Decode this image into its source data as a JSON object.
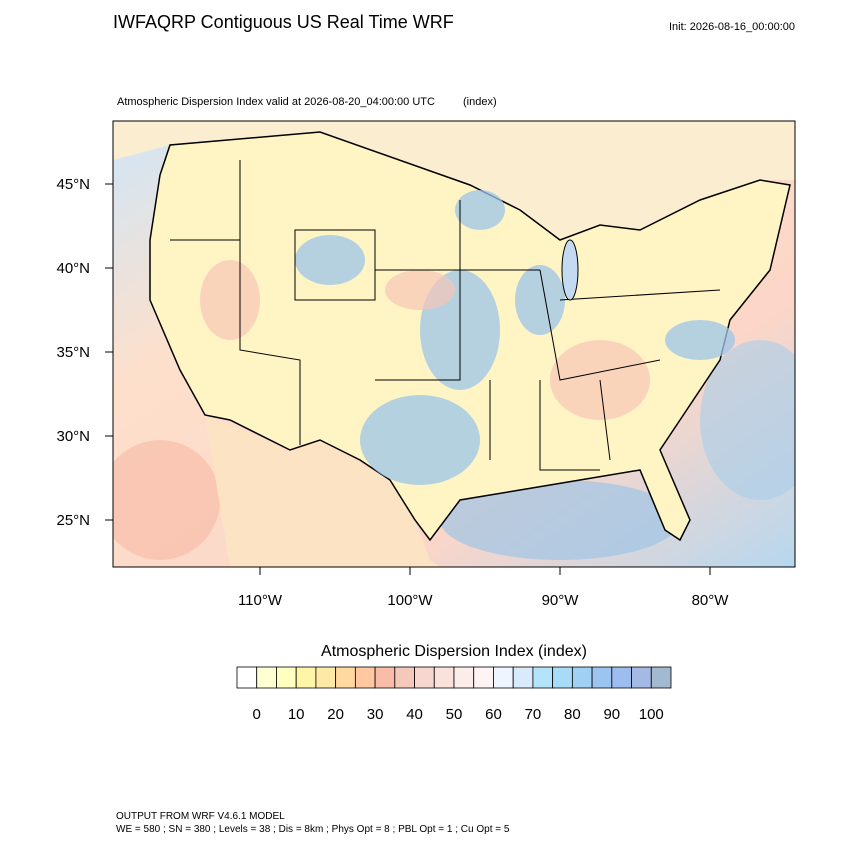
{
  "header": {
    "title": "IWFAQRP Contiguous US Real Time WRF",
    "init": "Init: 2026-08-16_00:00:00",
    "subtitle": "Atmospheric Dispersion Index valid at 2026-08-20_04:00:00 UTC",
    "units": "(index)"
  },
  "map": {
    "lat_labels": [
      "45°N",
      "40°N",
      "35°N",
      "30°N",
      "25°N"
    ],
    "lon_labels": [
      "110°W",
      "100°W",
      "90°W",
      "80°W"
    ]
  },
  "colorbar": {
    "title": "Atmospheric Dispersion Index  (index)",
    "labels": [
      0,
      10,
      20,
      30,
      40,
      50,
      60,
      70,
      80,
      90,
      100
    ],
    "colors": [
      "#ffffff",
      "#ffffd4",
      "#ffffc0",
      "#fff5a8",
      "#ffe9a6",
      "#ffd9a0",
      "#ffc8a0",
      "#f8bca8",
      "#f5c8bc",
      "#f7d6cf",
      "#f9e2dc",
      "#fcecea",
      "#fff4f4",
      "#eef5ff",
      "#d7ebfb",
      "#b4e4fa",
      "#a8dbf7",
      "#a0d0f3",
      "#9cc4f0",
      "#9dbdee",
      "#a4b9e4",
      "#a3b9cf"
    ]
  },
  "footer": {
    "line1": "OUTPUT FROM WRF V4.6.1 MODEL",
    "line2": "WE = 580 ; SN = 380 ; Levels = 38 ; Dis = 8km ; Phys Opt = 8 ; PBL Opt = 1 ; Cu Opt = 5"
  }
}
